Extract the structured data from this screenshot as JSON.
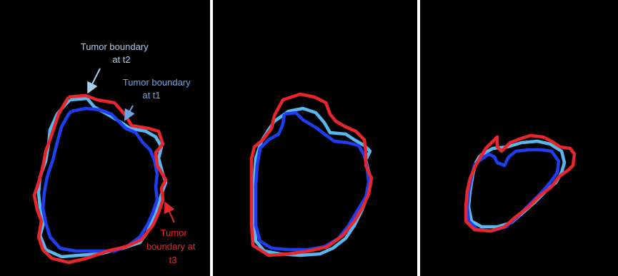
{
  "colors": {
    "background": "#000000",
    "divider": "#ffffff",
    "t1": "#1f3ef0",
    "t2": "#5ab8ee",
    "t3": "#e8262b",
    "label_t2": "#a9cdea",
    "label_t1": "#6aa6e6",
    "label_t3": "#e8262b"
  },
  "panels": [
    {
      "name": "panel-1"
    },
    {
      "name": "panel-2"
    },
    {
      "name": "panel-3"
    }
  ],
  "annotations": {
    "t2": {
      "lines": [
        "Tumor boundary",
        "at t2"
      ]
    },
    "t1": {
      "lines": [
        "Tumor boundary",
        "at t1"
      ]
    },
    "t3": {
      "lines": [
        "Tumor",
        "boundary at",
        "t3"
      ]
    }
  }
}
